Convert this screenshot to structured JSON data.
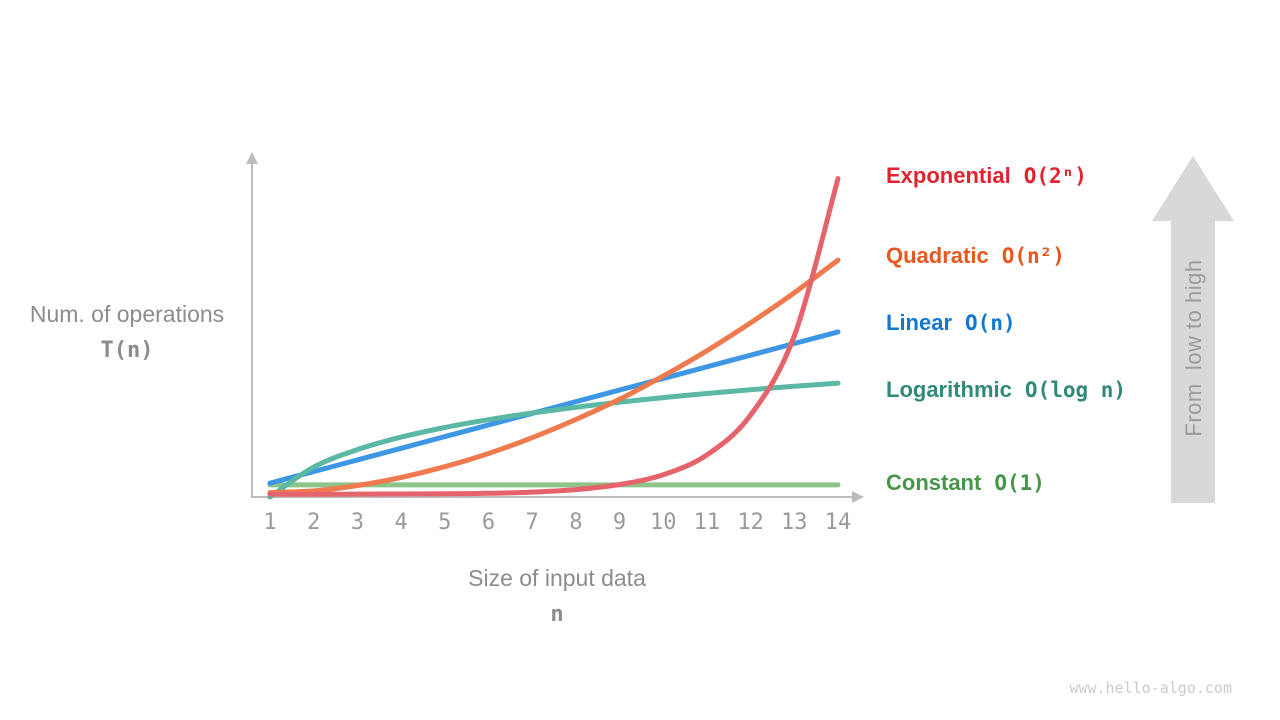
{
  "page": {
    "watermark": "www.hello-algo.com"
  },
  "annotation_arrow": {
    "text": "From  low to high"
  },
  "axes": {
    "y_label": "Num. of operations",
    "y_symbol": "T(n)",
    "x_label": "Size of input data",
    "x_symbol": "n",
    "x_ticks": [
      "1",
      "2",
      "3",
      "4",
      "5",
      "6",
      "7",
      "8",
      "9",
      "10",
      "11",
      "12",
      "13",
      "14"
    ]
  },
  "colors": {
    "axis_line": "#bcbcbc",
    "axis_text": "#8c8c8c",
    "tick_text": "#9a9a9a",
    "big_arrow_fill": "#d8d8d8",
    "big_arrow_text": "#9c9c9c",
    "watermark_text": "#cbcbcb"
  },
  "chart_data": {
    "type": "line",
    "title": "",
    "xlabel": "Size of input data (n)",
    "ylabel": "Num. of operations T(n)",
    "x": [
      1,
      2,
      3,
      4,
      5,
      6,
      7,
      8,
      9,
      10,
      11,
      12,
      13,
      14
    ],
    "x_range": [
      1,
      14
    ],
    "grid": false,
    "legend_position": "right",
    "y_units": "normalized fraction of plot height; each complexity curve is independently scaled for illustration",
    "series": [
      {
        "name": "Exponential",
        "formula": "O(2ⁿ)",
        "growth": "2^n",
        "curve_color": "#e5646b",
        "label_color": "#e0232e",
        "y_frac": [
          0.008,
          0.008,
          0.0085,
          0.009,
          0.0095,
          0.011,
          0.0145,
          0.022,
          0.037,
          0.066,
          0.125,
          0.243,
          0.478,
          0.945
        ]
      },
      {
        "name": "Quadratic",
        "formula": "O(n²)",
        "growth": "n^2",
        "curve_color": "#f0794e",
        "label_color": "#e8571c",
        "y_frac": [
          0.013,
          0.018,
          0.034,
          0.058,
          0.09,
          0.129,
          0.176,
          0.23,
          0.29,
          0.359,
          0.434,
          0.517,
          0.606,
          0.703
        ]
      },
      {
        "name": "Linear",
        "formula": "O(n)",
        "growth": "n",
        "curve_color": "#3d97e4",
        "label_color": "#1378cd",
        "y_frac": [
          0.041,
          0.0755,
          0.11,
          0.1446,
          0.1791,
          0.2137,
          0.2482,
          0.2827,
          0.3173,
          0.3518,
          0.3864,
          0.4209,
          0.4555,
          0.49
        ]
      },
      {
        "name": "Logarithmic",
        "formula": "O(log n)",
        "growth": "log n",
        "curve_color": "#5ab8a5",
        "label_color": "#31897a",
        "y_frac": [
          0.0,
          0.0888,
          0.1407,
          0.1776,
          0.2061,
          0.2295,
          0.2492,
          0.2663,
          0.2814,
          0.2949,
          0.3071,
          0.3183,
          0.3285,
          0.338
        ]
      },
      {
        "name": "Constant",
        "formula": "O(1)",
        "growth": "1",
        "curve_color": "#8cc489",
        "label_color": "#46964a",
        "y_frac": [
          0.036,
          0.036,
          0.036,
          0.036,
          0.036,
          0.036,
          0.036,
          0.036,
          0.036,
          0.036,
          0.036,
          0.036,
          0.036,
          0.036
        ]
      }
    ]
  }
}
